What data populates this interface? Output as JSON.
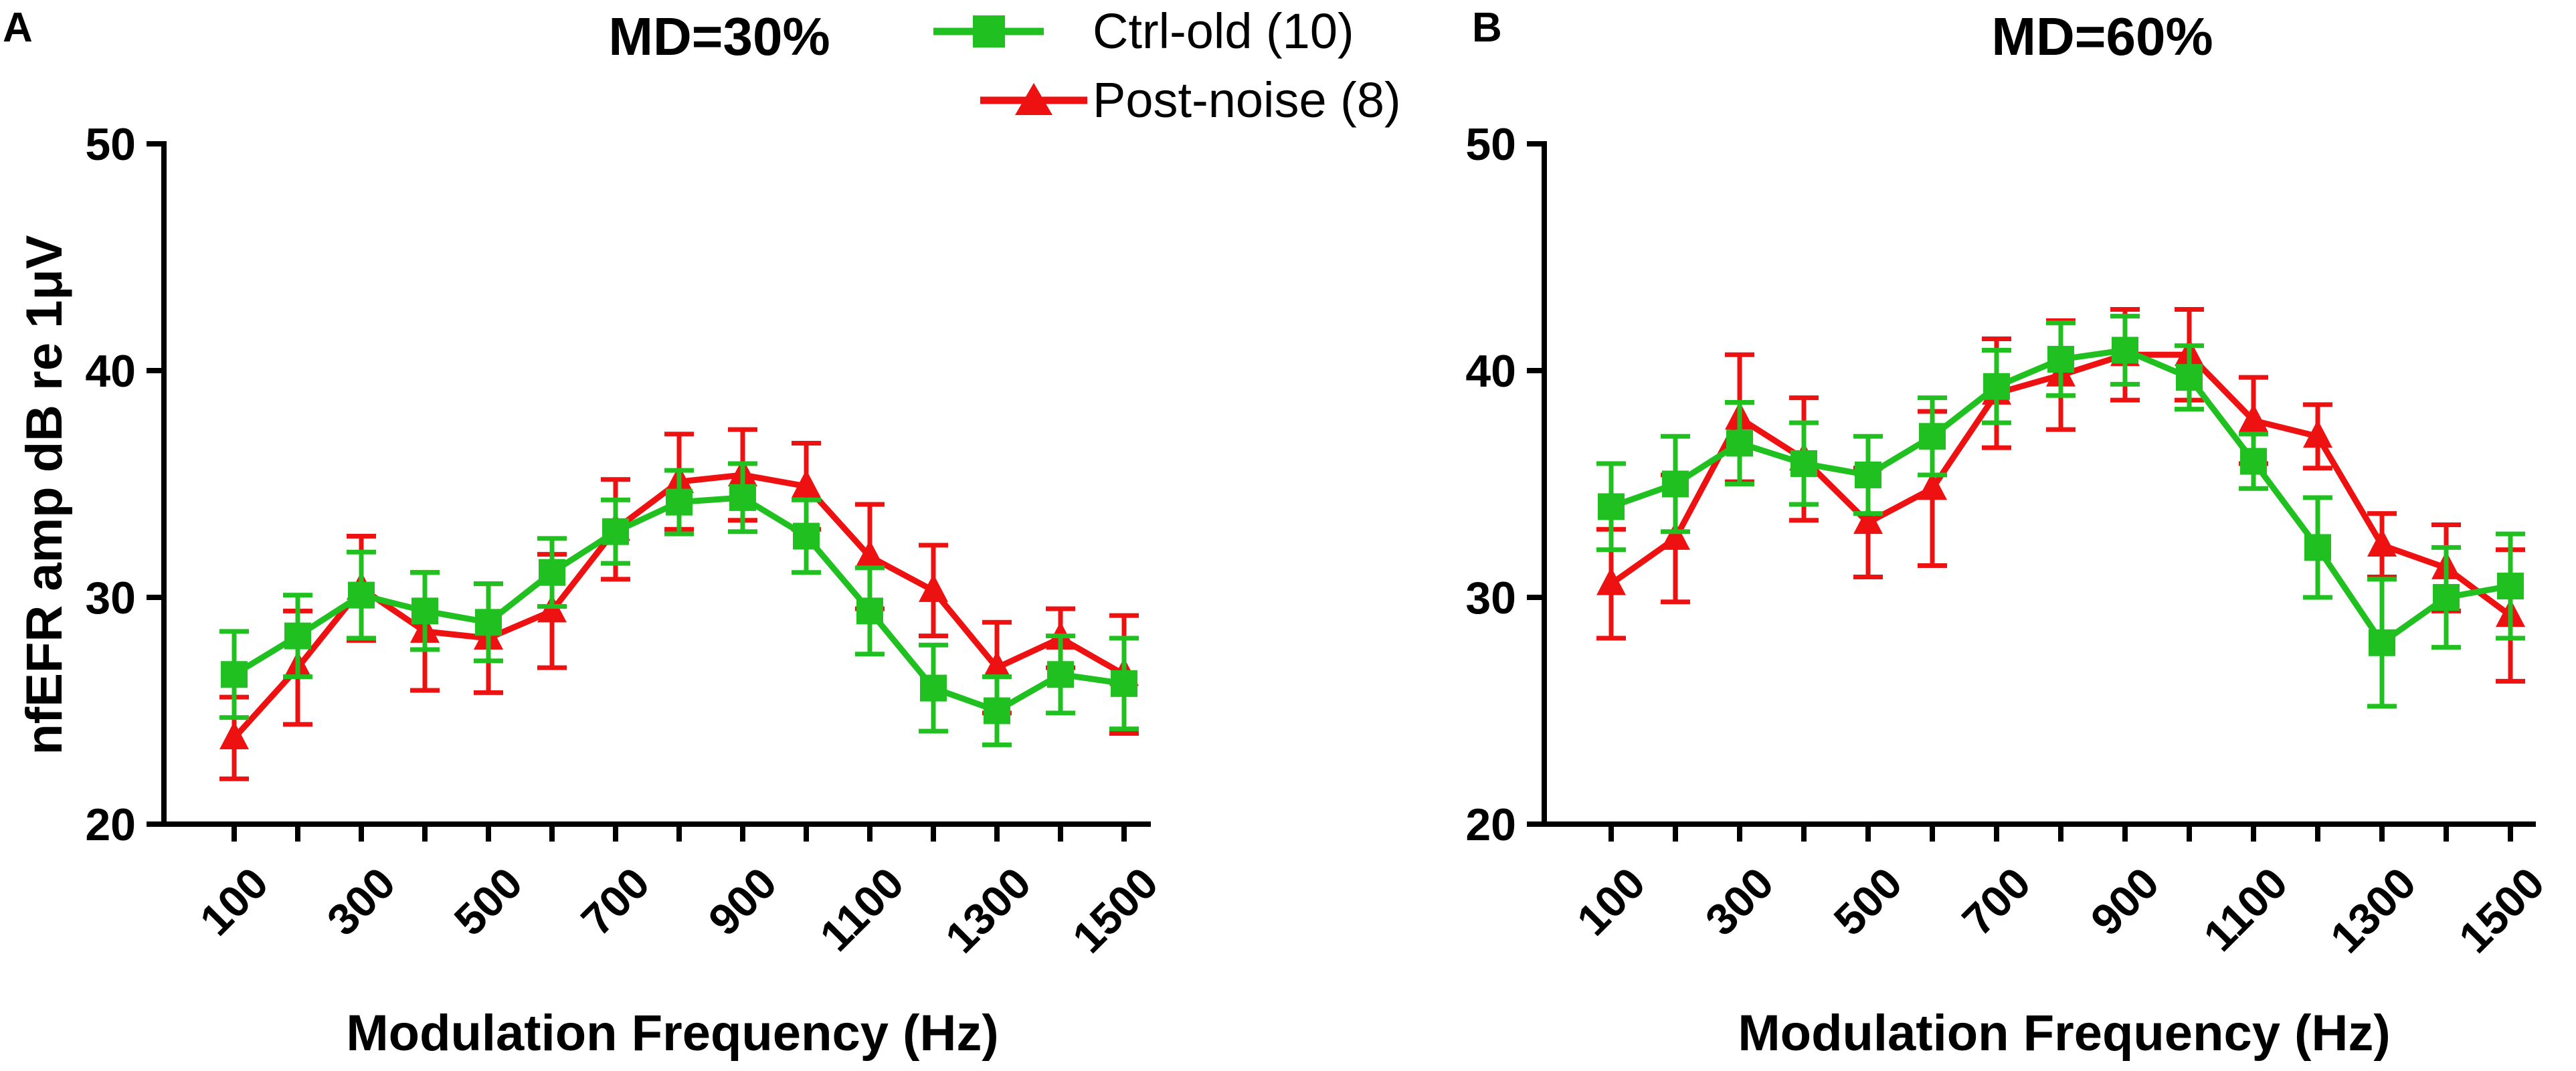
{
  "legend": {
    "entries": [
      {
        "label": "Ctrl-old (10)",
        "color": "#20c020",
        "marker": "square"
      },
      {
        "label": "Post-noise (8)",
        "color": "#ee1111",
        "marker": "triangle"
      }
    ]
  },
  "chart_data": [
    {
      "type": "line",
      "panel_label": "A",
      "title": "MD=30%",
      "xlabel": "Modulation Frequency (Hz)",
      "ylabel": "nfEFR amp dB re 1μV",
      "ylim": [
        20,
        50
      ],
      "yticks": [
        20,
        30,
        40,
        50
      ],
      "x": [
        100,
        200,
        300,
        400,
        500,
        600,
        700,
        800,
        900,
        1000,
        1100,
        1200,
        1300,
        1400,
        1500
      ],
      "xtick_labels": [
        "100",
        "300",
        "500",
        "700",
        "900",
        "1100",
        "1300",
        "1500"
      ],
      "xtick_values": [
        100,
        300,
        500,
        700,
        900,
        1100,
        1300,
        1500
      ],
      "series": [
        {
          "name": "Post-noise (8)",
          "color": "#ee1111",
          "marker": "triangle",
          "values": [
            23.8,
            26.9,
            30.4,
            28.5,
            28.2,
            29.4,
            33.0,
            35.1,
            35.4,
            34.9,
            31.8,
            30.3,
            26.9,
            28.2,
            26.6
          ],
          "errors": [
            1.8,
            2.5,
            2.3,
            2.6,
            2.4,
            2.5,
            2.2,
            2.1,
            2.0,
            1.9,
            2.3,
            2.0,
            2.0,
            1.3,
            2.6
          ]
        },
        {
          "name": "Ctrl-old (10)",
          "color": "#20c020",
          "marker": "square",
          "values": [
            26.6,
            28.3,
            30.1,
            29.4,
            28.9,
            31.1,
            32.9,
            34.2,
            34.4,
            32.7,
            29.4,
            26.0,
            25.0,
            26.6,
            26.2
          ],
          "errors": [
            1.9,
            1.8,
            1.9,
            1.7,
            1.7,
            1.5,
            1.4,
            1.4,
            1.5,
            1.6,
            1.9,
            1.9,
            1.5,
            1.7,
            2.0
          ]
        }
      ]
    },
    {
      "type": "line",
      "panel_label": "B",
      "title": "MD=60%",
      "xlabel": "Modulation Frequency (Hz)",
      "ylabel": "",
      "ylim": [
        20,
        50
      ],
      "yticks": [
        20,
        30,
        40,
        50
      ],
      "x": [
        100,
        200,
        300,
        400,
        500,
        600,
        700,
        800,
        900,
        1000,
        1100,
        1200,
        1300,
        1400,
        1500
      ],
      "xtick_labels": [
        "100",
        "300",
        "500",
        "700",
        "900",
        "1100",
        "1300",
        "1500"
      ],
      "xtick_values": [
        100,
        300,
        500,
        700,
        900,
        1100,
        1300,
        1500
      ],
      "series": [
        {
          "name": "Post-noise (8)",
          "color": "#ee1111",
          "marker": "triangle",
          "values": [
            30.6,
            32.6,
            37.9,
            36.1,
            33.3,
            34.8,
            39.0,
            39.8,
            40.7,
            40.7,
            37.8,
            37.1,
            32.3,
            31.3,
            29.2
          ],
          "errors": [
            2.4,
            2.8,
            2.8,
            2.7,
            2.4,
            3.4,
            2.4,
            2.4,
            2.0,
            2.0,
            1.9,
            1.4,
            1.4,
            1.9,
            2.9
          ]
        },
        {
          "name": "Ctrl-old (10)",
          "color": "#20c020",
          "marker": "square",
          "values": [
            34.0,
            35.0,
            36.8,
            35.9,
            35.4,
            37.1,
            39.3,
            40.5,
            40.9,
            39.7,
            36.0,
            32.2,
            28.0,
            30.0,
            30.5
          ],
          "errors": [
            1.9,
            2.1,
            1.8,
            1.8,
            1.7,
            1.7,
            1.6,
            1.6,
            1.5,
            1.4,
            1.2,
            2.2,
            2.8,
            2.2,
            2.3
          ]
        }
      ]
    }
  ]
}
